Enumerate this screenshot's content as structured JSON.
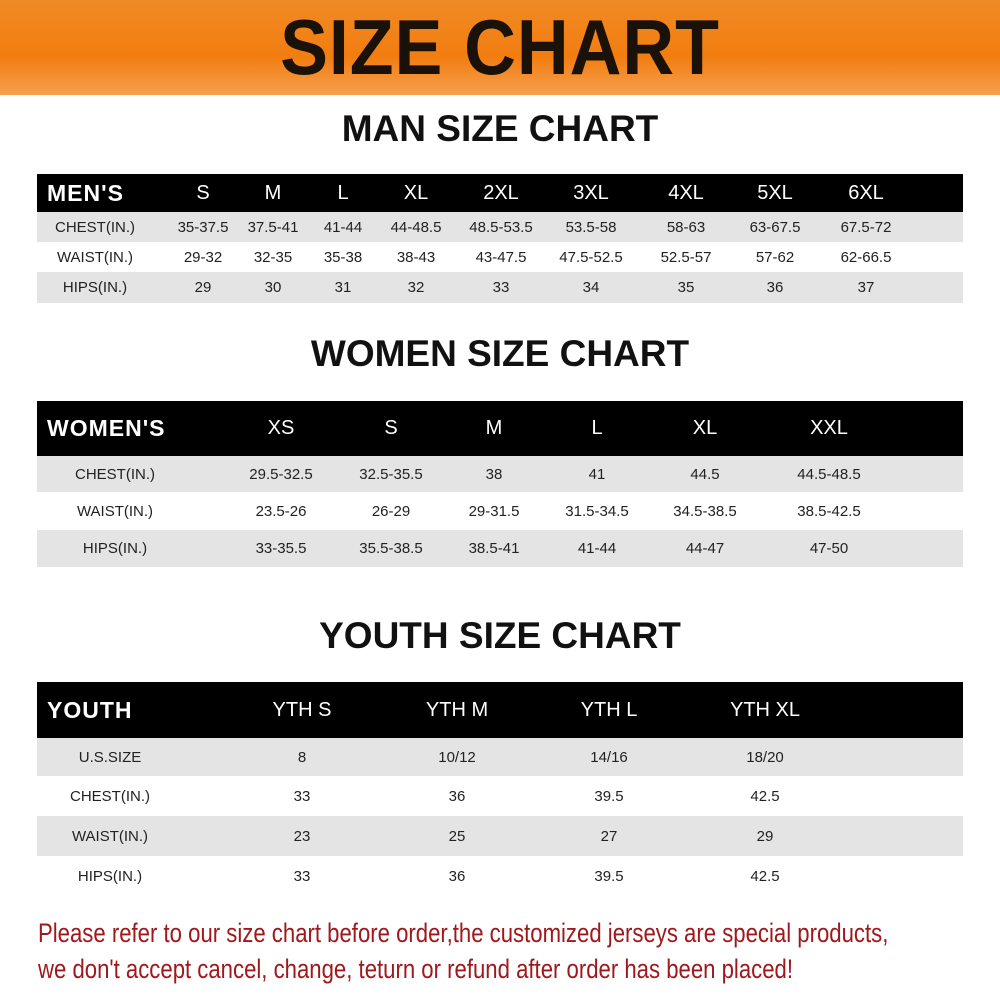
{
  "banner_title": "SIZE CHART",
  "colors": {
    "banner": "#f27d10",
    "header_row": "#000000",
    "stripe": "#e4e4e4",
    "note": "#a0181c"
  },
  "men": {
    "title": "MAN SIZE CHART",
    "header": [
      "MEN'S",
      "S",
      "M",
      "L",
      "XL",
      "2XL",
      "3XL",
      "4XL",
      "5XL",
      "6XL"
    ],
    "rows": [
      [
        "CHEST(IN.)",
        "35-37.5",
        "37.5-41",
        "41-44",
        "44-48.5",
        "48.5-53.5",
        "53.5-58",
        "58-63",
        "63-67.5",
        "67.5-72"
      ],
      [
        "WAIST(IN.)",
        "29-32",
        "32-35",
        "35-38",
        "38-43",
        "43-47.5",
        "47.5-52.5",
        "52.5-57",
        "57-62",
        "62-66.5"
      ],
      [
        "HIPS(IN.)",
        "29",
        "30",
        "31",
        "32",
        "33",
        "34",
        "35",
        "36",
        "37"
      ]
    ]
  },
  "women": {
    "title": "WOMEN SIZE CHART",
    "header": [
      "WOMEN'S",
      "XS",
      "S",
      "M",
      "L",
      "XL",
      "XXL"
    ],
    "rows": [
      [
        "CHEST(IN.)",
        "29.5-32.5",
        "32.5-35.5",
        "38",
        "41",
        "44.5",
        "44.5-48.5"
      ],
      [
        "WAIST(IN.)",
        "23.5-26",
        "26-29",
        "29-31.5",
        "31.5-34.5",
        "34.5-38.5",
        "38.5-42.5"
      ],
      [
        "HIPS(IN.)",
        "33-35.5",
        "35.5-38.5",
        "38.5-41",
        "41-44",
        "44-47",
        "47-50"
      ]
    ]
  },
  "youth": {
    "title": "YOUTH SIZE CHART",
    "header": [
      "YOUTH",
      "YTH S",
      "YTH M",
      "YTH L",
      "YTH XL"
    ],
    "rows": [
      [
        "U.S.SIZE",
        "8",
        "10/12",
        "14/16",
        "18/20"
      ],
      [
        "CHEST(IN.)",
        "33",
        "36",
        "39.5",
        "42.5"
      ],
      [
        "WAIST(IN.)",
        "23",
        "25",
        "27",
        "29"
      ],
      [
        "HIPS(IN.)",
        "33",
        "36",
        "39.5",
        "42.5"
      ]
    ]
  },
  "note": {
    "line1": "Please refer to our size chart before order,the customized jerseys are special products,",
    "line2": "we don't accept cancel, change, teturn or refund after order has been placed!"
  }
}
